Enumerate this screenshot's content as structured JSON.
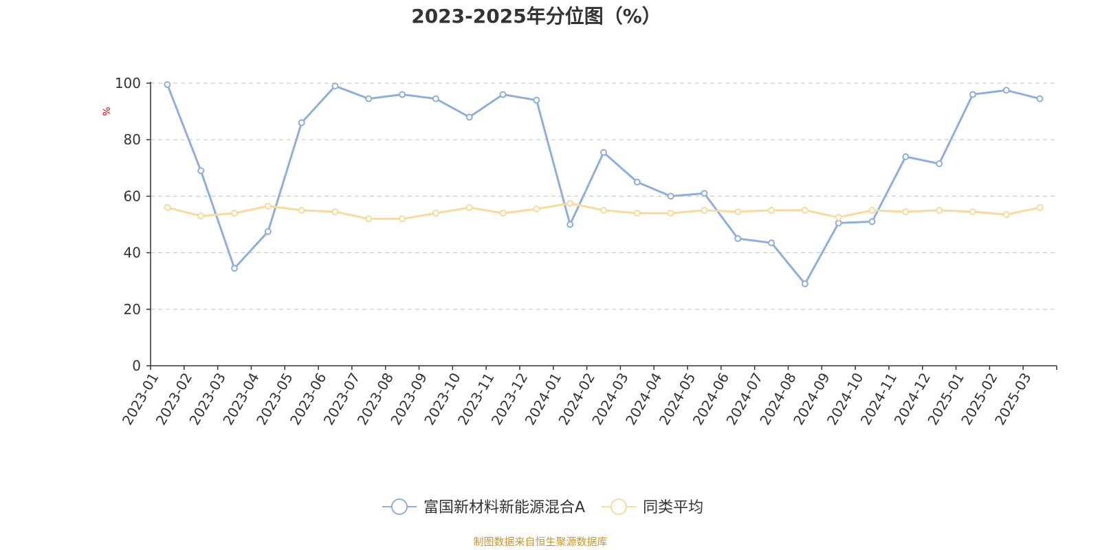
{
  "chart_data": {
    "type": "line",
    "title": "2023-2025年分位图（%）",
    "ylabel": "%",
    "ylim": [
      0,
      100
    ],
    "yticks": [
      0,
      20,
      40,
      60,
      80,
      100
    ],
    "grid": "horizontal-dashed",
    "legend_position": "bottom-center",
    "categories": [
      "2023-01",
      "2023-02",
      "2023-03",
      "2023-04",
      "2023-05",
      "2023-06",
      "2023-07",
      "2023-08",
      "2023-09",
      "2023-10",
      "2023-11",
      "2023-12",
      "2024-01",
      "2024-02",
      "2024-03",
      "2024-04",
      "2024-05",
      "2024-06",
      "2024-07",
      "2024-08",
      "2024-09",
      "2024-10",
      "2024-11",
      "2024-12",
      "2025-01",
      "2025-02",
      "2025-03"
    ],
    "series": [
      {
        "name": "富国新材料新能源混合A",
        "color": "#8eaedb",
        "values": [
          99.5,
          69,
          34.5,
          47.5,
          86,
          99,
          94.5,
          96,
          94.5,
          88,
          96,
          94,
          50,
          75.5,
          65,
          60,
          61,
          45,
          43.5,
          29,
          50.5,
          51,
          74,
          71.5,
          96,
          97.5,
          94.5
        ]
      },
      {
        "name": "同类平均",
        "color": "#fad999",
        "values": [
          56,
          53,
          54,
          56.5,
          55,
          54.5,
          52,
          52,
          54,
          56,
          54,
          55.5,
          57.5,
          55,
          54,
          54,
          55,
          54.5,
          55,
          55,
          52.5,
          55,
          54.5,
          55,
          54.5,
          53.5,
          56
        ]
      }
    ]
  },
  "source_note": "制图数据来自恒生聚源数据库",
  "colors": {
    "axis": "#333333",
    "grid": "#cccccc",
    "ylabel": "#e60000",
    "source": "#c8962d"
  }
}
